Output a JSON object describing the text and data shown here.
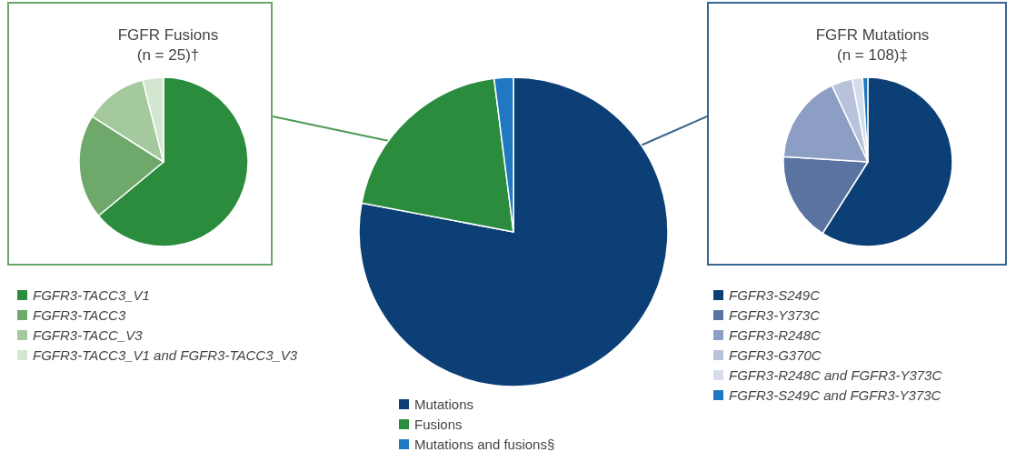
{
  "chart_data": [
    {
      "type": "pie",
      "title": "FGFR Fusions\n(n = 25)†",
      "categories": [
        "FGFR3-TACC3_V1",
        "FGFR3-TACC3",
        "FGFR3-TACC_V3",
        "FGFR3-TACC3_V1 and FGFR3-TACC3_V3"
      ],
      "values": [
        64,
        20,
        12,
        4
      ],
      "colors": [
        "#2a8c3c",
        "#6fa86b",
        "#a3c99d",
        "#d3e6cf"
      ],
      "legend": "bottom"
    },
    {
      "type": "pie",
      "categories": [
        "Mutations",
        "Fusions",
        "Mutations and fusions§"
      ],
      "values": [
        78,
        20,
        2
      ],
      "colors": [
        "#0d3f77",
        "#2a8c3c",
        "#1f78c1"
      ],
      "legend": "bottom"
    },
    {
      "type": "pie",
      "title": "FGFR Mutations\n(n = 108)‡",
      "categories": [
        "FGFR3-S249C",
        "FGFR3-Y373C",
        "FGFR3-R248C",
        "FGFR3-G370C",
        "FGFR3-R248C and FGFR3-Y373C",
        "FGFR3-S249C and FGFR3-Y373C"
      ],
      "values": [
        59,
        17,
        17,
        4,
        2,
        1
      ],
      "colors": [
        "#0d3f77",
        "#5a73a0",
        "#8d9ec4",
        "#b8c3db",
        "#d5dcec",
        "#1f78c1"
      ],
      "legend": "bottom"
    }
  ]
}
